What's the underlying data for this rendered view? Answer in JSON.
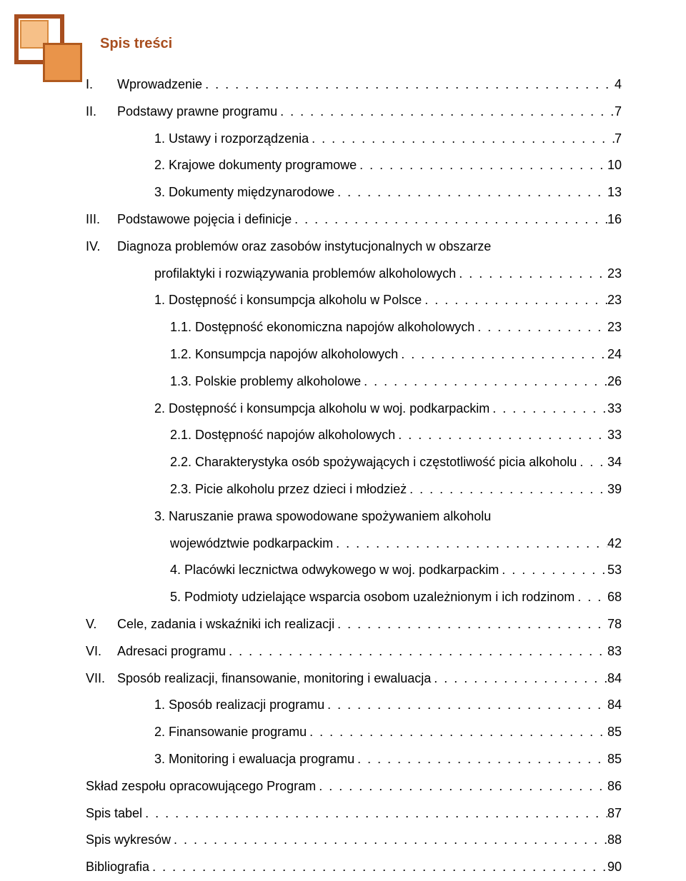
{
  "colors": {
    "accent": "#a84e1f",
    "deco_light": "#f6c088",
    "deco_mid": "#e9944a",
    "deco_border": "#b05a1e",
    "text": "#000000",
    "background": "#ffffff"
  },
  "typography": {
    "font_family": "Arial",
    "body_size_pt": 14,
    "title_size_pt": 15,
    "line_height": 2.1
  },
  "title": "Spis treści",
  "dots": ". . . . . . . . . . . . . . . . . . . . . . . . . . . . . . . . . . . . . . . . . . . . . . . . . . . . . . . . . . . . . . . . . . . . . . . . . . . . . . . . . . . . . . . . . . . . . . . . . . . . . . . . . . . . . . . . . . . . . . . .",
  "entries": [
    {
      "num": "I.",
      "label": "Wprowadzenie",
      "page": "4",
      "indent": 1
    },
    {
      "num": "II.",
      "label": "Podstawy prawne programu",
      "page": "7",
      "indent": 1
    },
    {
      "num": "",
      "label": "1. Ustawy i rozporządzenia",
      "page": "7",
      "indent": 2
    },
    {
      "num": "",
      "label": "2. Krajowe dokumenty programowe",
      "page": "10",
      "indent": 2
    },
    {
      "num": "",
      "label": "3. Dokumenty międzynarodowe",
      "page": "13",
      "indent": 2
    },
    {
      "num": "III.",
      "label": "Podstawowe pojęcia i definicje",
      "page": "16",
      "indent": 1
    },
    {
      "num": "IV.",
      "label": "Diagnoza problemów oraz zasobów instytucjonalnych w obszarze",
      "page": "",
      "indent": 1,
      "nodots": true
    },
    {
      "num": "",
      "label": "profilaktyki i rozwiązywania problemów alkoholowych",
      "page": "23",
      "indent": 2
    },
    {
      "num": "",
      "label": "1. Dostępność i konsumpcja alkoholu w Polsce",
      "page": "23",
      "indent": 2
    },
    {
      "num": "",
      "label": "1.1. Dostępność ekonomiczna napojów alkoholowych",
      "page": "23",
      "indent": 3
    },
    {
      "num": "",
      "label": "1.2. Konsumpcja napojów alkoholowych",
      "page": "24",
      "indent": 3
    },
    {
      "num": "",
      "label": "1.3. Polskie problemy alkoholowe",
      "page": "26",
      "indent": 3
    },
    {
      "num": "",
      "label": "2. Dostępność i konsumpcja alkoholu w woj. podkarpackim",
      "page": "33",
      "indent": 2
    },
    {
      "num": "",
      "label": "2.1. Dostępność napojów alkoholowych",
      "page": "33",
      "indent": 3
    },
    {
      "num": "",
      "label": "2.2. Charakterystyka osób spożywających i częstotliwość picia alkoholu",
      "page": "34",
      "indent": 3
    },
    {
      "num": "",
      "label": "2.3. Picie alkoholu przez dzieci i młodzież",
      "page": "39",
      "indent": 3
    },
    {
      "num": "",
      "label": "3. Naruszanie prawa spowodowane spożywaniem alkoholu",
      "page": "",
      "indent": 2,
      "nodots": true
    },
    {
      "num": "",
      "label": " województwie podkarpackim",
      "page": "42",
      "indent": 3
    },
    {
      "num": "",
      "label": "4. Placówki lecznictwa odwykowego w woj. podkarpackim",
      "page": "53",
      "indent": 3
    },
    {
      "num": "",
      "label": "5. Podmioty udzielające wsparcia osobom uzależnionym i ich rodzinom",
      "page": "68",
      "indent": 3
    },
    {
      "num": "V.",
      "label": "Cele, zadania i wskaźniki ich realizacji",
      "page": "78",
      "indent": 1
    },
    {
      "num": "VI.",
      "label": "Adresaci programu",
      "page": "83",
      "indent": 1
    },
    {
      "num": "VII.",
      "label": "Sposób realizacji, finansowanie, monitoring i ewaluacja",
      "page": "84",
      "indent": 1
    },
    {
      "num": "",
      "label": "1. Sposób realizacji programu",
      "page": "84",
      "indent": 2
    },
    {
      "num": "",
      "label": "2. Finansowanie programu",
      "page": "85",
      "indent": 2
    },
    {
      "num": "",
      "label": "3. Monitoring i ewaluacja programu",
      "page": "85",
      "indent": 2
    },
    {
      "num": "",
      "label": "Skład zespołu opracowującego Program",
      "page": "86",
      "indent": 1,
      "nonum": true
    },
    {
      "num": "",
      "label": "Spis tabel",
      "page": "87",
      "indent": 1,
      "nonum": true
    },
    {
      "num": "",
      "label": "Spis wykresów",
      "page": "88",
      "indent": 1,
      "nonum": true
    },
    {
      "num": "",
      "label": "Bibliografia",
      "page": "90",
      "indent": 1,
      "nonum": true
    }
  ]
}
